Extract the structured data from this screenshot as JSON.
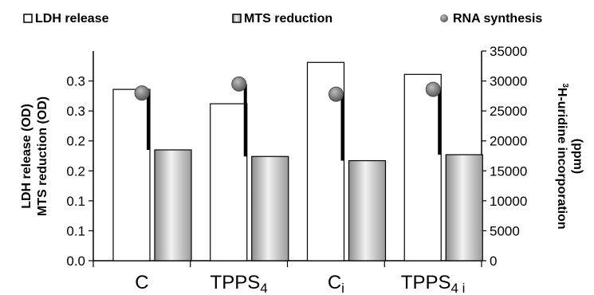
{
  "chart_data": {
    "type": "bar",
    "categories": [
      {
        "main": "C",
        "sub": ""
      },
      {
        "main": "TPPS",
        "sub": "4"
      },
      {
        "main": "C",
        "sub": "i"
      },
      {
        "main": "TPPS",
        "sub": "4 i"
      }
    ],
    "series": [
      {
        "name": "LDH release",
        "axis": "left",
        "style": "bar",
        "fill": "#ffffff",
        "values": [
          0.286,
          0.262,
          0.331,
          0.311
        ]
      },
      {
        "name": "MTS reduction",
        "axis": "left",
        "style": "bar",
        "fill": "gradient-gray",
        "values": [
          0.185,
          0.174,
          0.167,
          0.177
        ]
      },
      {
        "name": "RNA synthesis",
        "axis": "right",
        "style": "point",
        "fill": "#7a7a7a",
        "values": [
          28000,
          29500,
          27800,
          28600
        ]
      }
    ],
    "left_ticks": [
      "0.0",
      "0.1",
      "0.1",
      "0.2",
      "0.2",
      "0.3",
      "0.3"
    ],
    "left_tick_values": [
      0,
      0.05,
      0.1,
      0.15,
      0.2,
      0.25,
      0.3
    ],
    "right_ticks": [
      "0",
      "5000",
      "10000",
      "15000",
      "20000",
      "25000",
      "30000",
      "35000"
    ],
    "ylim_left": [
      0,
      0.35
    ],
    "ylim_right": [
      0,
      35000
    ],
    "ylabel_left_line1": "LDH release (OD)",
    "ylabel_left_line2": "MTS reduction (OD)",
    "ylabel_right_line1_sup": "3",
    "ylabel_right_line1": "H-uridine incorporation",
    "ylabel_right_line2": "(ppm)",
    "legend": [
      {
        "label": "LDH release",
        "marker": "hollow-square"
      },
      {
        "label": "MTS reduction",
        "marker": "gray-square"
      },
      {
        "label": "RNA synthesis",
        "marker": "gray-dot"
      }
    ],
    "legend_position": "top",
    "grid": false
  }
}
